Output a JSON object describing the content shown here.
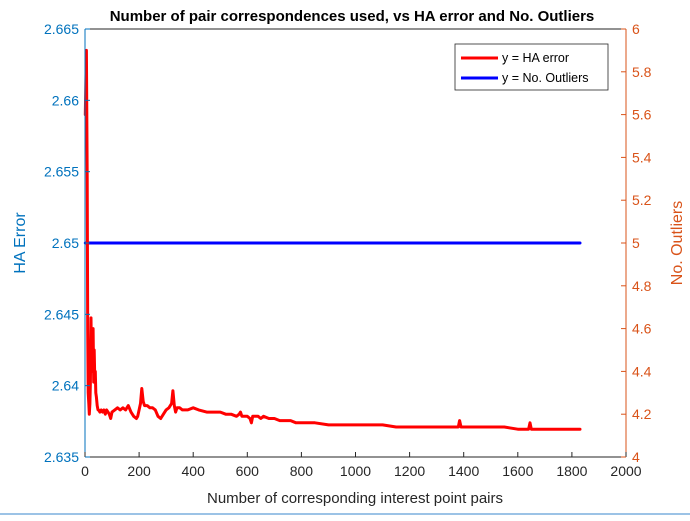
{
  "chart_data": {
    "type": "line",
    "title": "Number of pair correspondences used, vs HA error and No. Outliers",
    "xlabel": "Number of corresponding interest point pairs",
    "ylabel_left": "HA Error",
    "ylabel_right": "No. Outliers",
    "xlim": [
      0,
      2000
    ],
    "ylim_left": [
      2.635,
      2.665
    ],
    "ylim_right": [
      4,
      6
    ],
    "x_ticks": [
      "0",
      "200",
      "400",
      "600",
      "800",
      "1000",
      "1200",
      "1400",
      "1600",
      "1800",
      "2000"
    ],
    "y_left_ticks": [
      "2.635",
      "2.64",
      "2.645",
      "2.65",
      "2.655",
      "2.66",
      "2.665"
    ],
    "y_right_ticks": [
      "4",
      "4.2",
      "4.4",
      "4.6",
      "4.8",
      "5",
      "5.2",
      "5.4",
      "5.6",
      "5.8",
      "6"
    ],
    "grid": false,
    "legend_placement": "top-right",
    "colors": {
      "left_axis": "#0072bd",
      "right_axis": "#d95319",
      "ha_error": "#ff0000",
      "outliers": "#0000ff"
    },
    "series": [
      {
        "name": "y = HA error",
        "axis": "right",
        "color": "#ff0000",
        "x": [
          1,
          5,
          8,
          10,
          12,
          14,
          16,
          18,
          20,
          22,
          24,
          26,
          28,
          30,
          32,
          34,
          36,
          38,
          40,
          42,
          45,
          48,
          50,
          55,
          60,
          65,
          70,
          75,
          80,
          85,
          90,
          95,
          100,
          110,
          120,
          130,
          140,
          150,
          160,
          170,
          180,
          190,
          195,
          200,
          205,
          210,
          215,
          220,
          230,
          240,
          250,
          260,
          270,
          280,
          290,
          300,
          310,
          320,
          325,
          330,
          335,
          340,
          350,
          360,
          380,
          400,
          420,
          450,
          480,
          500,
          520,
          540,
          560,
          570,
          575,
          580,
          600,
          610,
          615,
          620,
          640,
          650,
          660,
          680,
          700,
          720,
          740,
          760,
          780,
          800,
          850,
          900,
          950,
          1000,
          1050,
          1100,
          1150,
          1200,
          1250,
          1300,
          1350,
          1380,
          1385,
          1390,
          1400,
          1450,
          1500,
          1550,
          1600,
          1640,
          1645,
          1650,
          1700,
          1750,
          1800,
          1830
        ],
        "y": [
          5.6,
          5.9,
          5.3,
          4.6,
          4.3,
          4.25,
          4.2,
          4.25,
          4.35,
          4.65,
          4.45,
          4.5,
          4.4,
          4.6,
          4.35,
          4.5,
          4.38,
          4.4,
          4.3,
          4.28,
          4.24,
          4.22,
          4.22,
          4.21,
          4.22,
          4.21,
          4.22,
          4.2,
          4.22,
          4.21,
          4.2,
          4.18,
          4.21,
          4.22,
          4.23,
          4.22,
          4.23,
          4.22,
          4.24,
          4.21,
          4.19,
          4.18,
          4.19,
          4.22,
          4.25,
          4.32,
          4.26,
          4.24,
          4.24,
          4.23,
          4.23,
          4.22,
          4.19,
          4.18,
          4.2,
          4.22,
          4.23,
          4.25,
          4.31,
          4.24,
          4.21,
          4.23,
          4.23,
          4.22,
          4.22,
          4.23,
          4.22,
          4.21,
          4.21,
          4.21,
          4.2,
          4.2,
          4.19,
          4.2,
          4.21,
          4.19,
          4.19,
          4.18,
          4.16,
          4.19,
          4.19,
          4.18,
          4.19,
          4.18,
          4.18,
          4.17,
          4.17,
          4.17,
          4.16,
          4.16,
          4.16,
          4.15,
          4.15,
          4.15,
          4.15,
          4.15,
          4.14,
          4.14,
          4.14,
          4.14,
          4.14,
          4.14,
          4.17,
          4.14,
          4.14,
          4.14,
          4.14,
          4.14,
          4.13,
          4.13,
          4.16,
          4.13,
          4.13,
          4.13,
          4.13,
          4.13
        ]
      },
      {
        "name": "y = No. Outliers",
        "axis": "right",
        "color": "#0000ff",
        "x": [
          1,
          1830
        ],
        "y": [
          5,
          5
        ]
      }
    ]
  }
}
